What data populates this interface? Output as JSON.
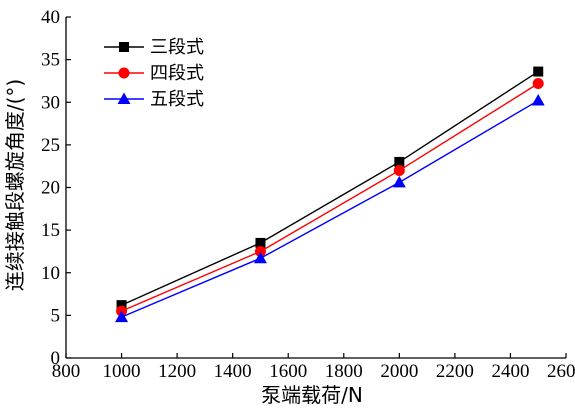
{
  "chart_data": {
    "type": "line",
    "xlabel": "泵端载荷/N",
    "ylabel": "连续接触段螺旋角度/(°)",
    "xlim": [
      800,
      2600
    ],
    "ylim": [
      0,
      40
    ],
    "xticks": [
      800,
      1000,
      1200,
      1400,
      1600,
      1800,
      2000,
      2200,
      2400,
      2600
    ],
    "yticks": [
      0,
      5,
      10,
      15,
      20,
      25,
      30,
      35,
      40
    ],
    "grid": false,
    "legend_position": "top-left",
    "x": [
      1000,
      1500,
      2000,
      2500
    ],
    "series": [
      {
        "name": "三段式",
        "values": [
          6.2,
          13.5,
          23.0,
          33.6
        ],
        "color": "#000000",
        "marker": "square"
      },
      {
        "name": "四段式",
        "values": [
          5.5,
          12.5,
          22.0,
          32.2
        ],
        "color": "#ff0000",
        "marker": "circle"
      },
      {
        "name": "五段式",
        "values": [
          4.8,
          11.7,
          20.6,
          30.2
        ],
        "color": "#0000ff",
        "marker": "triangle"
      }
    ]
  }
}
